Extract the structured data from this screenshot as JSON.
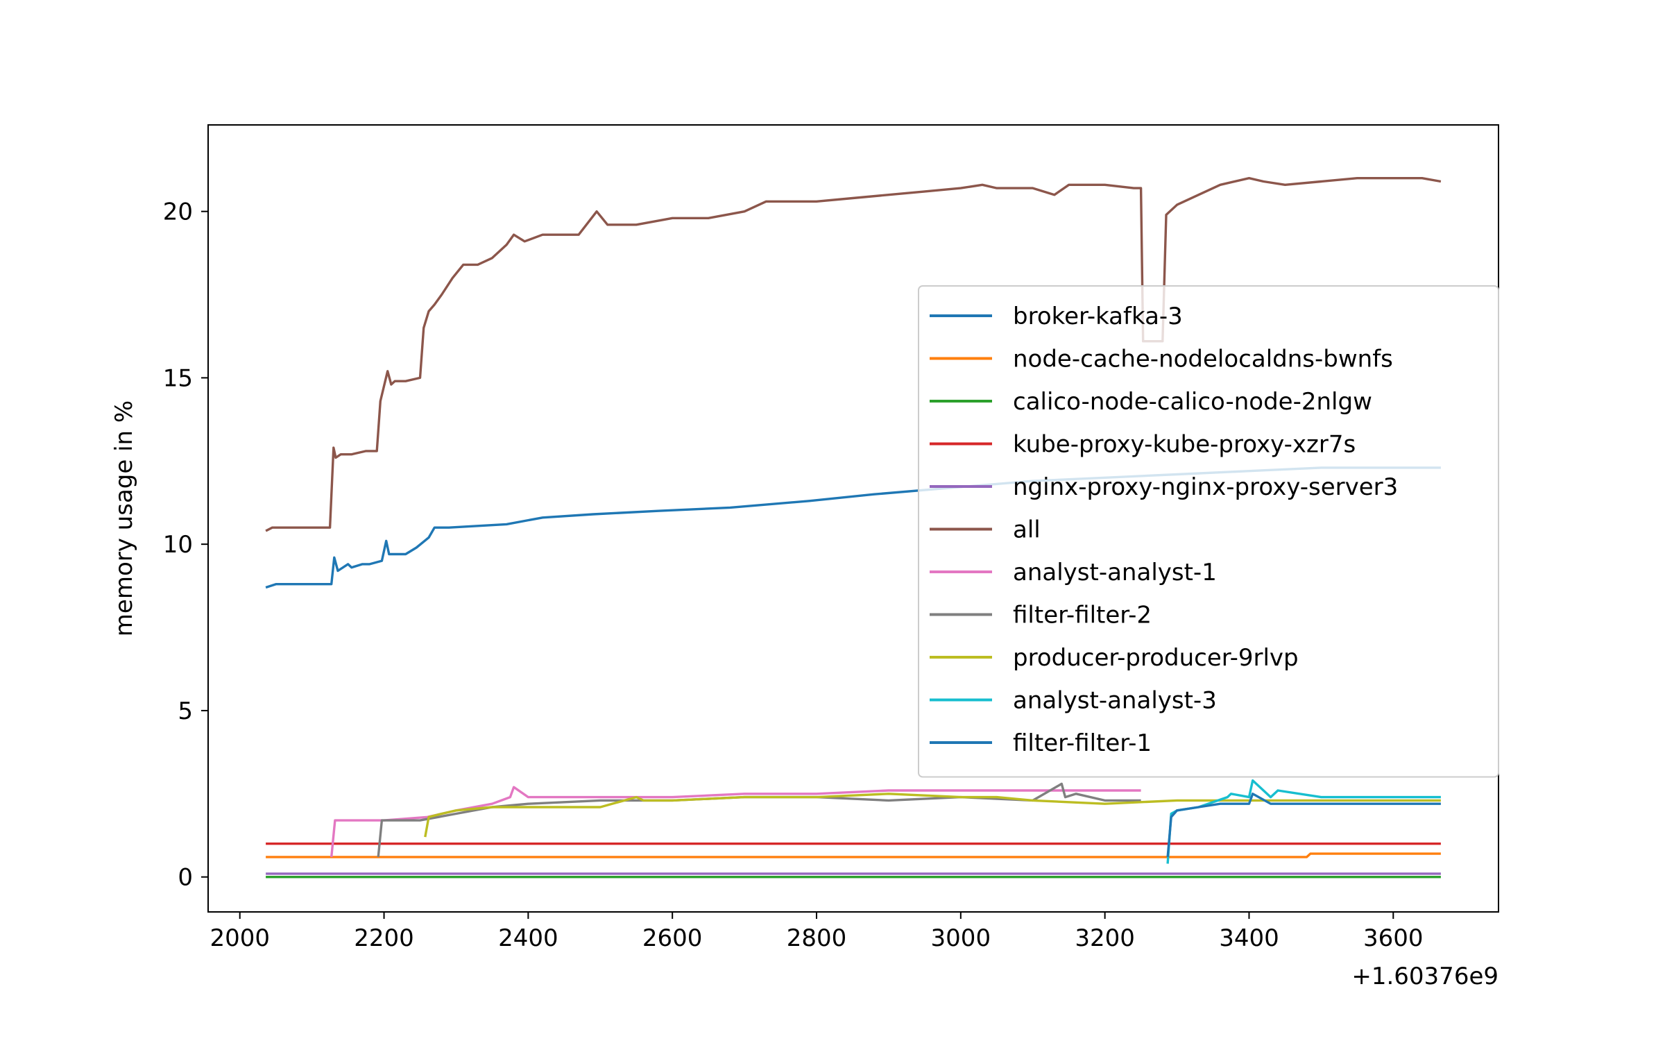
{
  "chart_data": {
    "type": "line",
    "title": "",
    "xlabel": "",
    "ylabel": "memory usage in %",
    "x_offset_label": "+1.60376e9",
    "xlim": [
      1956,
      3746
    ],
    "ylim": [
      -1.05,
      22.6
    ],
    "xticks": [
      2000,
      2200,
      2400,
      2600,
      2800,
      3000,
      3200,
      3400,
      3600
    ],
    "yticks": [
      0,
      5,
      10,
      15,
      20
    ],
    "grid": false,
    "legend_position": "center-right",
    "series": [
      {
        "name": "broker-kafka-3",
        "color": "#1f77b4",
        "x": [
          2036,
          2050,
          2127,
          2131,
          2136,
          2150,
          2155,
          2170,
          2180,
          2197,
          2203,
          2207,
          2230,
          2245,
          2262,
          2270,
          2290,
          2370,
          2420,
          2490,
          2580,
          2680,
          2790,
          2880,
          2990,
          3100,
          3200,
          3300,
          3400,
          3500,
          3600,
          3666
        ],
        "y": [
          8.7,
          8.8,
          8.8,
          9.6,
          9.2,
          9.4,
          9.3,
          9.4,
          9.4,
          9.5,
          10.1,
          9.7,
          9.7,
          9.9,
          10.2,
          10.5,
          10.5,
          10.6,
          10.8,
          10.9,
          11.0,
          11.1,
          11.3,
          11.5,
          11.7,
          11.9,
          12.0,
          12.1,
          12.2,
          12.3,
          12.3,
          12.3
        ]
      },
      {
        "name": "node-cache-nodelocaldns-bwnfs",
        "color": "#ff7f0e",
        "x": [
          2036,
          3480,
          3485,
          3666
        ],
        "y": [
          0.6,
          0.6,
          0.7,
          0.7
        ]
      },
      {
        "name": "calico-node-calico-node-2nlgw",
        "color": "#2ca02c",
        "x": [
          2036,
          3666
        ],
        "y": [
          0.0,
          0.0
        ]
      },
      {
        "name": "kube-proxy-kube-proxy-xzr7s",
        "color": "#d62728",
        "x": [
          2036,
          3666
        ],
        "y": [
          1.0,
          1.0
        ]
      },
      {
        "name": "nginx-proxy-nginx-proxy-server3",
        "color": "#9467bd",
        "x": [
          2036,
          3666
        ],
        "y": [
          0.1,
          0.1
        ]
      },
      {
        "name": "all",
        "color": "#8c564b",
        "x": [
          2036,
          2045,
          2125,
          2130,
          2133,
          2140,
          2155,
          2175,
          2190,
          2195,
          2205,
          2210,
          2215,
          2230,
          2250,
          2255,
          2262,
          2270,
          2280,
          2295,
          2310,
          2330,
          2350,
          2370,
          2380,
          2395,
          2420,
          2470,
          2495,
          2510,
          2550,
          2600,
          2650,
          2700,
          2730,
          2800,
          2850,
          2900,
          2950,
          3000,
          3030,
          3050,
          3100,
          3130,
          3150,
          3200,
          3240,
          3250,
          3253,
          3280,
          3285,
          3300,
          3330,
          3360,
          3400,
          3420,
          3450,
          3500,
          3550,
          3600,
          3640,
          3666
        ],
        "y": [
          10.4,
          10.5,
          10.5,
          12.9,
          12.6,
          12.7,
          12.7,
          12.8,
          12.8,
          14.3,
          15.2,
          14.8,
          14.9,
          14.9,
          15.0,
          16.5,
          17.0,
          17.2,
          17.5,
          18.0,
          18.4,
          18.4,
          18.6,
          19.0,
          19.3,
          19.1,
          19.3,
          19.3,
          20.0,
          19.6,
          19.6,
          19.8,
          19.8,
          20.0,
          20.3,
          20.3,
          20.4,
          20.5,
          20.6,
          20.7,
          20.8,
          20.7,
          20.7,
          20.5,
          20.8,
          20.8,
          20.7,
          20.7,
          16.1,
          16.1,
          19.9,
          20.2,
          20.5,
          20.8,
          21.0,
          20.9,
          20.8,
          20.9,
          21.0,
          21.0,
          21.0,
          20.9
        ]
      },
      {
        "name": "analyst-analyst-1",
        "color": "#e377c2",
        "x": [
          2127,
          2132,
          2200,
          2260,
          2300,
          2350,
          2375,
          2380,
          2400,
          2500,
          2600,
          2700,
          2800,
          2900,
          3000,
          3100,
          3200,
          3250
        ],
        "y": [
          0.6,
          1.7,
          1.7,
          1.8,
          2.0,
          2.2,
          2.4,
          2.7,
          2.4,
          2.4,
          2.4,
          2.5,
          2.5,
          2.6,
          2.6,
          2.6,
          2.6,
          2.6
        ]
      },
      {
        "name": "filter-filter-2",
        "color": "#7f7f7f",
        "x": [
          2192,
          2197,
          2250,
          2300,
          2350,
          2400,
          2500,
          2600,
          2700,
          2800,
          2900,
          3000,
          3100,
          3140,
          3145,
          3160,
          3200,
          3250
        ],
        "y": [
          0.6,
          1.7,
          1.7,
          1.9,
          2.1,
          2.2,
          2.3,
          2.3,
          2.4,
          2.4,
          2.3,
          2.4,
          2.3,
          2.8,
          2.4,
          2.5,
          2.3,
          2.3
        ]
      },
      {
        "name": "producer-producer-9rlvp",
        "color": "#bcbd22",
        "x": [
          2257,
          2262,
          2280,
          2300,
          2350,
          2400,
          2500,
          2550,
          2560,
          2600,
          2700,
          2800,
          2900,
          3000,
          3050,
          3100,
          3200,
          3300,
          3400,
          3500,
          3600,
          3666
        ],
        "y": [
          1.2,
          1.8,
          1.9,
          2.0,
          2.1,
          2.1,
          2.1,
          2.4,
          2.3,
          2.3,
          2.4,
          2.4,
          2.5,
          2.4,
          2.4,
          2.3,
          2.2,
          2.3,
          2.3,
          2.3,
          2.3,
          2.3
        ]
      },
      {
        "name": "analyst-analyst-3",
        "color": "#17becf",
        "x": [
          3287,
          3292,
          3300,
          3330,
          3370,
          3375,
          3400,
          3405,
          3430,
          3440,
          3500,
          3600,
          3666
        ],
        "y": [
          0.4,
          1.9,
          2.0,
          2.1,
          2.4,
          2.5,
          2.4,
          2.9,
          2.4,
          2.6,
          2.4,
          2.4,
          2.4
        ]
      },
      {
        "name": "filter-filter-1",
        "color": "#1f77b4",
        "x": [
          3287,
          3292,
          3300,
          3330,
          3360,
          3400,
          3405,
          3430,
          3500,
          3600,
          3666
        ],
        "y": [
          0.6,
          1.8,
          2.0,
          2.1,
          2.2,
          2.2,
          2.5,
          2.2,
          2.2,
          2.2,
          2.2
        ]
      }
    ]
  }
}
